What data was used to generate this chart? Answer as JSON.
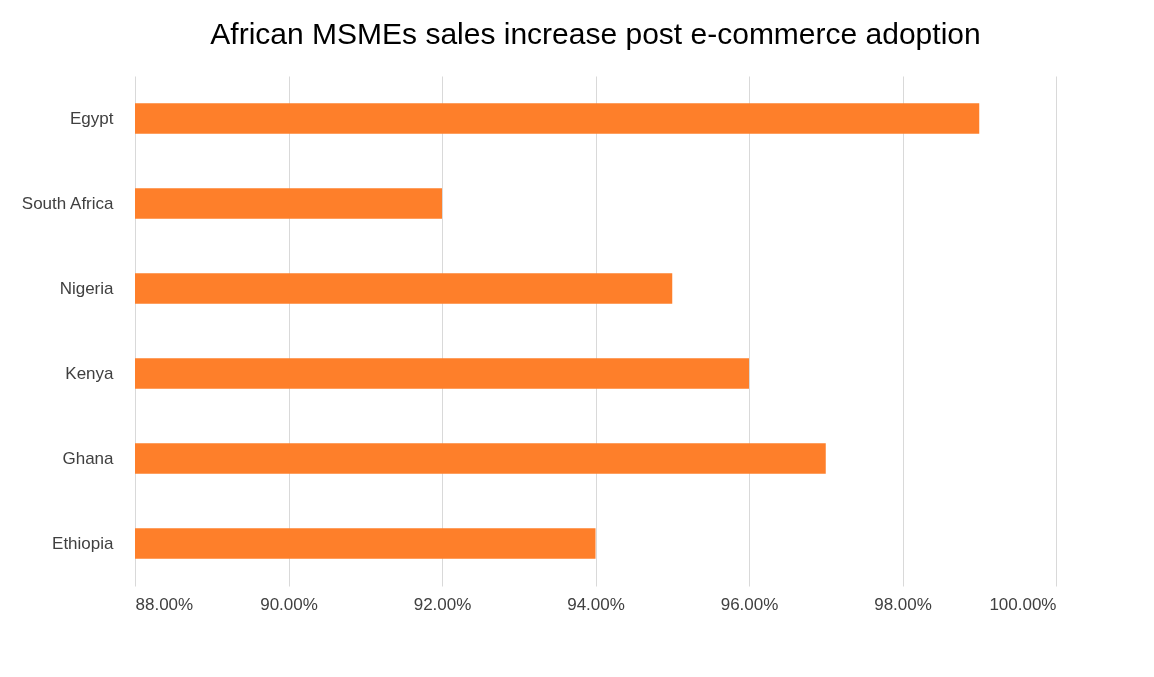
{
  "chart_data": {
    "type": "bar",
    "orientation": "horizontal",
    "title": "African MSMEs sales increase post e-commerce adoption",
    "categories": [
      "Egypt",
      "South Africa",
      "Nigeria",
      "Kenya",
      "Ghana",
      "Ethiopia"
    ],
    "values": [
      99,
      92,
      95,
      96,
      97,
      94
    ],
    "color": "#fe7f2a",
    "xlim": [
      88,
      100
    ],
    "xticks": [
      {
        "value": 88,
        "label": "88.00%"
      },
      {
        "value": 90,
        "label": "90.00%"
      },
      {
        "value": 92,
        "label": "92.00%"
      },
      {
        "value": 94,
        "label": "94.00%"
      },
      {
        "value": 96,
        "label": "96.00%"
      },
      {
        "value": 98,
        "label": "98.00%"
      },
      {
        "value": 100,
        "label": "100.00%"
      }
    ],
    "grid": "x"
  }
}
